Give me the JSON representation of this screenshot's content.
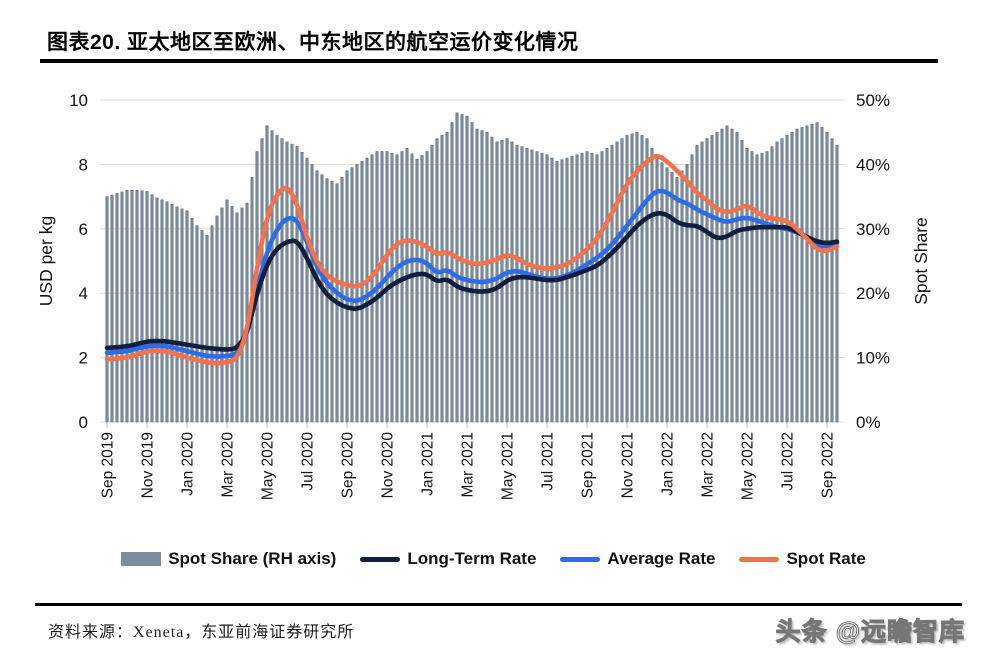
{
  "title": "图表20. 亚太地区至欧洲、中东地区的航空运价变化情况",
  "source_note": "资料来源：Xeneta，东亚前海证券研究所",
  "watermark": "头条 @远瞻智库",
  "chart_data": {
    "type": "combo bar+line",
    "x_description": "Weekly-interpolated series, anchors every half month from Sep 2019 to mid-Sep 2022",
    "x_tick_labels": [
      "Sep 2019",
      "Nov 2019",
      "Jan 2020",
      "Mar 2020",
      "May 2020",
      "Jul 2020",
      "Sep 2020",
      "Nov 2020",
      "Jan 2021",
      "Mar 2021",
      "May 2021",
      "Jul 2021",
      "Sep 2021",
      "Nov 2021",
      "Jan 2022",
      "Mar 2022",
      "May 2022",
      "Jul 2022",
      "Sep 2022"
    ],
    "left_axis": {
      "label": "USD per kg",
      "ticks": [
        0,
        2,
        4,
        6,
        8,
        10
      ],
      "range": [
        0,
        10
      ]
    },
    "right_axis": {
      "label": "Spot Share",
      "ticks": [
        "0%",
        "10%",
        "20%",
        "30%",
        "40%",
        "50%"
      ],
      "range_pct": [
        0,
        50
      ]
    },
    "legend_position": "bottom",
    "grid": "horizontal",
    "series": [
      {
        "name": "Spot Share (RH axis)",
        "type": "bar",
        "axis": "right",
        "unit": "%",
        "color": "#7c8b9e",
        "values": [
          35,
          35.5,
          36,
          36,
          35.8,
          34.8,
          34.2,
          33.4,
          32.8,
          30.5,
          29,
          32,
          34.5,
          32.5,
          34,
          42,
          46,
          44.5,
          43.5,
          42.8,
          41,
          39,
          37.8,
          37,
          39,
          40,
          41,
          42,
          42,
          41.5,
          42.5,
          40.8,
          42,
          44,
          45,
          48,
          47.5,
          45.5,
          45,
          43.5,
          44,
          43,
          42.5,
          42,
          41.5,
          40.5,
          41,
          41.5,
          42,
          41.5,
          42.5,
          43.5,
          44.5,
          45,
          44,
          41,
          39.5,
          38,
          40,
          43,
          44,
          45,
          46,
          45,
          42.5,
          41.5,
          42,
          43.5,
          44.5,
          45.5,
          46,
          46.5,
          45,
          43
        ]
      },
      {
        "name": "Long-Term Rate",
        "type": "line",
        "axis": "left",
        "unit": "USD per kg",
        "color": "#101f3f",
        "values": [
          2.3,
          2.32,
          2.35,
          2.42,
          2.5,
          2.52,
          2.5,
          2.45,
          2.4,
          2.35,
          2.3,
          2.27,
          2.25,
          2.28,
          2.75,
          4,
          4.9,
          5.4,
          5.6,
          5.65,
          5.1,
          4.4,
          3.95,
          3.7,
          3.55,
          3.5,
          3.65,
          3.85,
          4.15,
          4.35,
          4.5,
          4.6,
          4.6,
          4.35,
          4.45,
          4.2,
          4.1,
          4.05,
          4.05,
          4.15,
          4.4,
          4.5,
          4.5,
          4.45,
          4.4,
          4.4,
          4.5,
          4.6,
          4.72,
          4.85,
          5.1,
          5.4,
          5.75,
          6.1,
          6.35,
          6.5,
          6.45,
          6.2,
          6.1,
          6.1,
          5.9,
          5.7,
          5.75,
          5.95,
          6,
          6.05,
          6.05,
          6.05,
          6.05,
          5.9,
          5.75,
          5.6,
          5.55,
          5.6
        ]
      },
      {
        "name": "Average Rate",
        "type": "line",
        "axis": "left",
        "unit": "USD per kg",
        "color": "#2e6ce5",
        "values": [
          2.15,
          2.17,
          2.2,
          2.28,
          2.35,
          2.37,
          2.35,
          2.28,
          2.2,
          2.12,
          2.05,
          2.03,
          2.05,
          2.1,
          2.7,
          4.1,
          5.3,
          6,
          6.35,
          6.3,
          5.6,
          4.8,
          4.3,
          4,
          3.8,
          3.75,
          3.9,
          4.15,
          4.5,
          4.8,
          5,
          5.05,
          4.95,
          4.6,
          4.75,
          4.5,
          4.4,
          4.35,
          4.35,
          4.45,
          4.65,
          4.7,
          4.6,
          4.5,
          4.45,
          4.45,
          4.55,
          4.7,
          4.9,
          5.1,
          5.35,
          5.7,
          6.1,
          6.5,
          6.9,
          7.2,
          7.15,
          6.9,
          6.8,
          6.6,
          6.45,
          6.3,
          6.2,
          6.3,
          6.35,
          6.25,
          6.15,
          6.05,
          6,
          5.9,
          5.75,
          5.5,
          5.45,
          5.55
        ]
      },
      {
        "name": "Spot Rate",
        "type": "line",
        "axis": "left",
        "unit": "USD per kg",
        "color": "#f4714a",
        "values": [
          1.95,
          1.97,
          2,
          2.1,
          2.2,
          2.22,
          2.2,
          2.1,
          2,
          1.92,
          1.85,
          1.83,
          1.85,
          1.95,
          2.8,
          4.8,
          6.4,
          7.1,
          7.35,
          6.8,
          5.7,
          4.95,
          4.55,
          4.35,
          4.25,
          4.2,
          4.35,
          4.7,
          5.2,
          5.55,
          5.65,
          5.6,
          5.45,
          5.2,
          5.3,
          5.1,
          4.95,
          4.9,
          4.95,
          5.05,
          5.2,
          5.1,
          4.9,
          4.8,
          4.75,
          4.8,
          4.9,
          5.1,
          5.35,
          5.7,
          6.2,
          6.8,
          7.4,
          7.8,
          8.1,
          8.3,
          8.1,
          7.8,
          7.5,
          7.1,
          6.9,
          6.6,
          6.5,
          6.6,
          6.75,
          6.5,
          6.35,
          6.3,
          6.25,
          6,
          5.7,
          5.35,
          5.3,
          5.45
        ]
      }
    ]
  }
}
